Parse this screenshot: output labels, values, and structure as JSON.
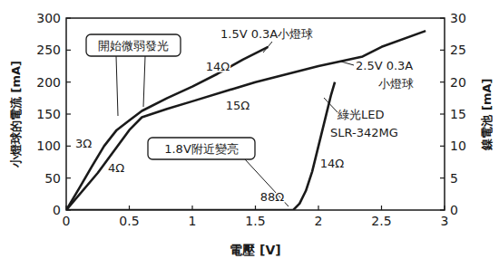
{
  "chart_data": {
    "type": "line",
    "x_label": "電壓 [V]",
    "y_label": "小燈球的電流 [mA]",
    "y2_label": "鎳電池 [mA]",
    "xlim": [
      0,
      3
    ],
    "xticks": [
      0,
      0.5,
      1,
      1.5,
      2,
      2.5,
      3
    ],
    "ylim": [
      0,
      300
    ],
    "yticks": [
      0,
      50,
      100,
      150,
      200,
      250,
      300
    ],
    "y2lim": [
      0,
      30
    ],
    "y2ticks": [
      0,
      5,
      10,
      15,
      20,
      25,
      30
    ],
    "grid": false,
    "series": [
      {
        "name": "1.5V 0.3A小燈球",
        "color": "#1a1a1a",
        "line_style": "solid",
        "x": [
          0,
          0.1,
          0.2,
          0.3,
          0.4,
          0.5,
          0.6,
          0.8,
          1.0,
          1.2,
          1.4,
          1.6
        ],
        "values": [
          0,
          33,
          67,
          100,
          125,
          140,
          155,
          175,
          193,
          213,
          235,
          255
        ]
      },
      {
        "name": "2.5V 0.3A\n小燈球",
        "color": "#1a1a1a",
        "line_style": "solid",
        "x": [
          0,
          0.25,
          0.5,
          0.6,
          0.8,
          1.0,
          1.5,
          2.0,
          2.35,
          2.5,
          2.85
        ],
        "values": [
          0,
          58,
          125,
          145,
          158,
          170,
          200,
          225,
          240,
          255,
          280
        ]
      },
      {
        "name": "綠光LED\nSLR-342MG",
        "color": "#1a1a1a",
        "line_style": "solid",
        "axis": "y2",
        "x": [
          0,
          1.8,
          1.85,
          1.9,
          1.95,
          2.0,
          2.05,
          2.1,
          2.13
        ],
        "values": [
          0,
          0,
          1,
          3,
          6,
          10,
          14,
          18,
          20
        ]
      }
    ],
    "annotations": [
      "開始微弱發光",
      "1.8V附近變亮",
      "14Ω",
      "15Ω",
      "14Ω",
      "88Ω",
      "3Ω",
      "4Ω"
    ]
  }
}
